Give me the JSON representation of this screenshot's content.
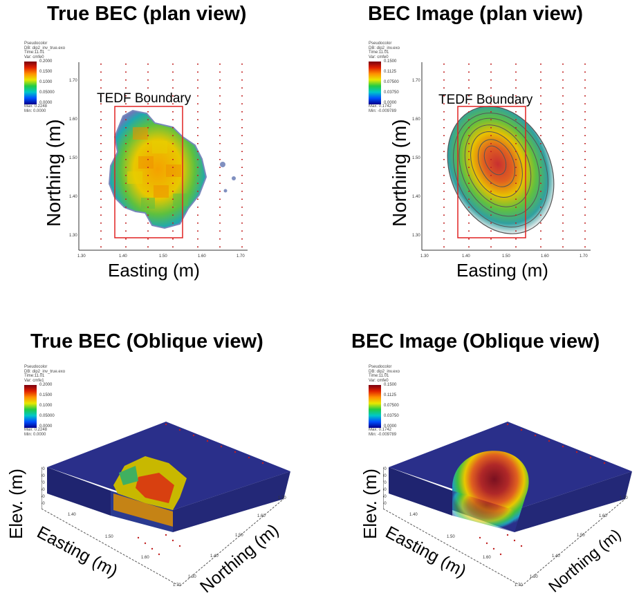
{
  "panels": {
    "true_plan": {
      "title": "True BEC (plan view)",
      "ylabel": "Northing (m)",
      "xlabel": "Easting (m)",
      "boundary_label": "TEDF Boundary",
      "legend": {
        "lines": [
          "Pseudocolor",
          "DB: dip2_inv_true.exo",
          "Time:11.01",
          "Var: cmfe0"
        ],
        "ticks": [
          "0.2000",
          "0.1500",
          "0.1000",
          "0.05000",
          "0.0000"
        ],
        "max": "Max: 0.2248",
        "min": "Min: 0.0000"
      },
      "x_ticks": [
        "1.30",
        "1.40",
        "1.50",
        "1.60",
        "1.70"
      ],
      "y_ticks": [
        "1.70",
        "1.60",
        "1.50",
        "1.40",
        "1.30"
      ]
    },
    "image_plan": {
      "title": "BEC Image (plan view)",
      "ylabel": "Northing (m)",
      "xlabel": "Easting (m)",
      "boundary_label": "TEDF Boundary",
      "legend": {
        "lines": [
          "Pseudocolor",
          "DB: dip2_inv.exo",
          "Time:11.01",
          "Var: cmfe0"
        ],
        "ticks": [
          "0.1500",
          "0.1125",
          "0.07500",
          "0.03750",
          "0.0000"
        ],
        "max": "Max: 0.1742",
        "min": "Min: -0.009789"
      },
      "x_ticks": [
        "1.30",
        "1.40",
        "1.50",
        "1.60",
        "1.70"
      ],
      "y_ticks": [
        "1.70",
        "1.60",
        "1.50",
        "1.40",
        "1.30"
      ]
    },
    "true_oblique": {
      "title": "True BEC (Oblique view)",
      "elev_label": "Elev. (m)",
      "easting_label": "Easting (m)",
      "northing_label": "Northing (m)",
      "legend": {
        "lines": [
          "Pseudocolor",
          "DB: dip2_inv_true.exo",
          "Time:11.01",
          "Var: cmfe1"
        ],
        "ticks": [
          "0.2000",
          "0.1500",
          "0.1000",
          "0.05000",
          "0.0000"
        ],
        "max": "Max: 0.2248",
        "min": "Min: 0.0000"
      },
      "elev_ticks": [
        "90",
        "80",
        "70",
        "60",
        "50",
        "40"
      ],
      "east_ticks": [
        "1.40",
        "1.50",
        "1.60",
        "1.70"
      ],
      "north_ticks": [
        "1.30",
        "1.40",
        "1.50",
        "1.60",
        "1.70"
      ]
    },
    "image_oblique": {
      "title": "BEC Image (Oblique view)",
      "elev_label": "Elev. (m)",
      "easting_label": "Easting (m)",
      "northing_label": "Northing (m)",
      "legend": {
        "lines": [
          "Pseudocolor",
          "DB: dip2_inv.exo",
          "Time:11.01",
          "Var: cmfe0"
        ],
        "ticks": [
          "0.1500",
          "0.1125",
          "0.07500",
          "0.03750",
          "0.0000"
        ],
        "max": "Max: 0.1742",
        "min": "Min: -0.009789"
      },
      "elev_ticks": [
        "90",
        "80",
        "70",
        "60",
        "50",
        "40"
      ],
      "east_ticks": [
        "1.40",
        "1.50",
        "1.60",
        "1.70"
      ],
      "north_ticks": [
        "1.30",
        "1.40",
        "1.50",
        "1.60",
        "1.70"
      ]
    }
  },
  "colors": {
    "boundary": "#e02020",
    "electrode_dots": "#c02020",
    "background_volume": "#2a2f8a"
  }
}
